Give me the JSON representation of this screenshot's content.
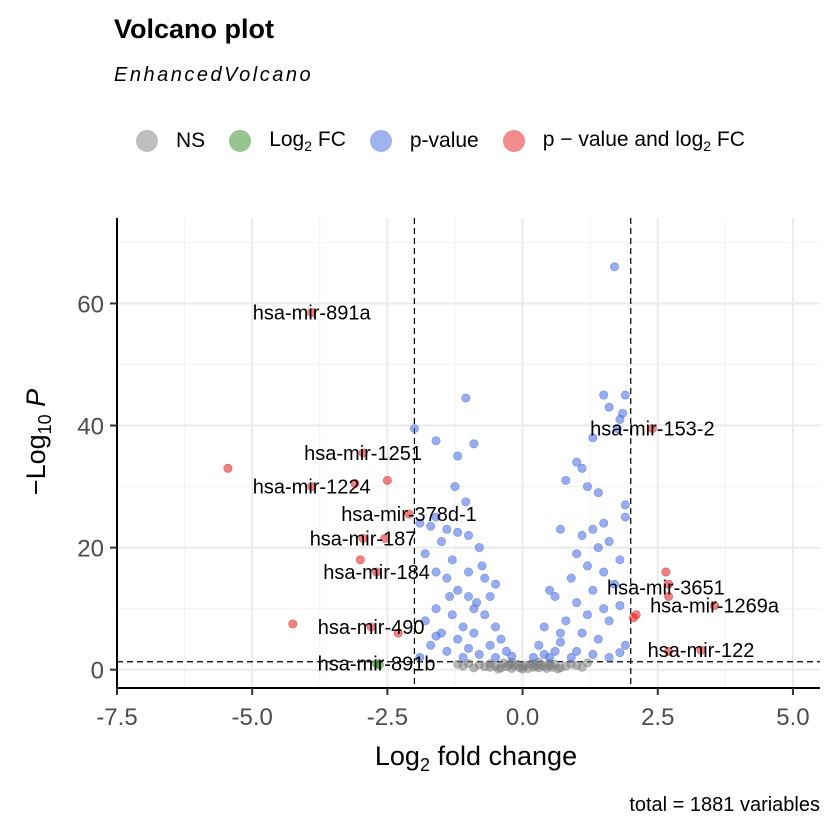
{
  "title": "Volcano plot",
  "subtitle": "EnhancedVolcano",
  "caption": "total = 1881 variables",
  "legend": [
    {
      "label": "NS",
      "sub": "",
      "rest": "",
      "color": "#808080"
    },
    {
      "label": "Log",
      "sub": "2",
      "rest": " FC",
      "color": "#2E8B22"
    },
    {
      "label": "p-value",
      "sub": "",
      "rest": "",
      "color": "#4169E1"
    },
    {
      "label": "p − value  and  log",
      "sub": "2",
      "rest": " FC",
      "color": "#E41A1C"
    }
  ],
  "chart_data": {
    "type": "scatter",
    "title": "Volcano plot",
    "subtitle": "EnhancedVolcano",
    "xlabel": "Log2 fold change",
    "ylabel": "−Log10 P",
    "xlim": [
      -7.5,
      5.5
    ],
    "ylim": [
      -3,
      74
    ],
    "xticks": [
      -7.5,
      -5.0,
      -2.5,
      0.0,
      2.5,
      5.0
    ],
    "xtick_labels": [
      "-7.5",
      "-5.0",
      "-2.5",
      "0.0",
      "2.5",
      "5.0"
    ],
    "yticks": [
      0,
      20,
      40,
      60
    ],
    "ytick_labels": [
      "0",
      "20",
      "40",
      "60"
    ],
    "thresholds": {
      "fc": [
        -2,
        2
      ],
      "p": 1.3
    },
    "grid": true,
    "legend_position": "top",
    "series": [
      {
        "name": "NS",
        "color": "#808080",
        "points": [
          [
            -0.6,
            0.4
          ],
          [
            -0.5,
            0.6
          ],
          [
            -0.4,
            0.3
          ],
          [
            -0.3,
            0.5
          ],
          [
            -0.25,
            0.8
          ],
          [
            -0.2,
            0.2
          ],
          [
            -0.15,
            0.6
          ],
          [
            -0.1,
            0.9
          ],
          [
            -0.05,
            0.3
          ],
          [
            0.0,
            0.5
          ],
          [
            0.05,
            0.7
          ],
          [
            0.1,
            0.2
          ],
          [
            0.15,
            0.9
          ],
          [
            0.2,
            0.4
          ],
          [
            0.25,
            0.6
          ],
          [
            0.3,
            0.3
          ],
          [
            0.35,
            0.8
          ],
          [
            0.4,
            0.5
          ],
          [
            0.45,
            0.2
          ],
          [
            0.5,
            0.7
          ],
          [
            0.55,
            0.4
          ],
          [
            0.6,
            0.9
          ],
          [
            0.7,
            0.3
          ],
          [
            0.8,
            0.6
          ],
          [
            -0.7,
            0.5
          ],
          [
            -0.8,
            0.8
          ],
          [
            -1.0,
            1.0
          ],
          [
            -1.1,
            0.6
          ],
          [
            -1.2,
            0.9
          ],
          [
            0.9,
            0.9
          ],
          [
            1.0,
            0.7
          ],
          [
            1.2,
            1.1
          ],
          [
            -0.35,
            1.1
          ],
          [
            0.3,
            1.2
          ],
          [
            -0.45,
            0.1
          ],
          [
            0.65,
            0.15
          ],
          [
            -0.9,
            0.3
          ],
          [
            1.1,
            0.4
          ],
          [
            0.0,
            0.1
          ],
          [
            -0.2,
            1.2
          ],
          [
            0.2,
            1.0
          ],
          [
            0.5,
            1.1
          ],
          [
            -0.6,
            1.0
          ]
        ]
      },
      {
        "name": "Log2 FC",
        "color": "#2E8B22",
        "points": [
          [
            -2.7,
            1.0
          ],
          [
            -2.65,
            0.8
          ]
        ]
      },
      {
        "name": "p-value",
        "color": "#4169E1",
        "points": [
          [
            1.7,
            66
          ],
          [
            1.5,
            45
          ],
          [
            1.9,
            45
          ],
          [
            1.6,
            43
          ],
          [
            1.85,
            42
          ],
          [
            1.8,
            41
          ],
          [
            1.75,
            39.5
          ],
          [
            1.3,
            38
          ],
          [
            1.1,
            33
          ],
          [
            1.0,
            34
          ],
          [
            0.8,
            31
          ],
          [
            1.2,
            30
          ],
          [
            1.4,
            29
          ],
          [
            1.9,
            27
          ],
          [
            1.9,
            25
          ],
          [
            1.5,
            24
          ],
          [
            1.3,
            23
          ],
          [
            0.7,
            23
          ],
          [
            1.1,
            22
          ],
          [
            1.6,
            21
          ],
          [
            1.4,
            20
          ],
          [
            1.0,
            19
          ],
          [
            1.8,
            18
          ],
          [
            1.2,
            17
          ],
          [
            1.5,
            16
          ],
          [
            0.9,
            15
          ],
          [
            1.7,
            14
          ],
          [
            1.3,
            13
          ],
          [
            0.5,
            13
          ],
          [
            0.6,
            12
          ],
          [
            1.0,
            11
          ],
          [
            1.8,
            10.5
          ],
          [
            1.5,
            10
          ],
          [
            1.2,
            9
          ],
          [
            0.8,
            8
          ],
          [
            1.6,
            8
          ],
          [
            0.4,
            7
          ],
          [
            1.1,
            6
          ],
          [
            0.7,
            6
          ],
          [
            1.4,
            5
          ],
          [
            0.3,
            4
          ],
          [
            1.9,
            4
          ],
          [
            0.6,
            3
          ],
          [
            1.0,
            3
          ],
          [
            1.3,
            2.5
          ],
          [
            0.5,
            2
          ],
          [
            0.9,
            2
          ],
          [
            1.6,
            2
          ],
          [
            1.8,
            2.8
          ],
          [
            0.4,
            2.5
          ],
          [
            0.2,
            2
          ],
          [
            0.7,
            4.5
          ],
          [
            -2.0,
            39.5
          ],
          [
            -1.05,
            44.5
          ],
          [
            -1.6,
            37.5
          ],
          [
            -0.9,
            37
          ],
          [
            -1.2,
            35
          ],
          [
            -1.25,
            30
          ],
          [
            -1.05,
            27.5
          ],
          [
            -1.6,
            25
          ],
          [
            -1.9,
            24
          ],
          [
            -1.7,
            23.5
          ],
          [
            -1.4,
            23
          ],
          [
            -1.2,
            22.5
          ],
          [
            -1.0,
            22
          ],
          [
            -1.5,
            21
          ],
          [
            -0.8,
            20
          ],
          [
            -1.8,
            19
          ],
          [
            -1.3,
            18
          ],
          [
            -1.6,
            16
          ],
          [
            -1.0,
            16
          ],
          [
            -0.7,
            15
          ],
          [
            -1.4,
            15
          ],
          [
            -1.2,
            13
          ],
          [
            -0.5,
            14
          ],
          [
            -1.0,
            12
          ],
          [
            -0.6,
            12
          ],
          [
            -1.6,
            10
          ],
          [
            -0.9,
            10
          ],
          [
            -1.3,
            9
          ],
          [
            -0.7,
            9
          ],
          [
            -1.8,
            8
          ],
          [
            -1.1,
            7
          ],
          [
            -0.5,
            7
          ],
          [
            -1.5,
            6
          ],
          [
            -0.9,
            6
          ],
          [
            -0.4,
            5
          ],
          [
            -1.2,
            5
          ],
          [
            -1.7,
            4
          ],
          [
            -0.6,
            4
          ],
          [
            -1.0,
            3.5
          ],
          [
            -0.3,
            3
          ],
          [
            -1.4,
            3
          ],
          [
            -0.8,
            2.5
          ],
          [
            -1.9,
            2
          ],
          [
            -0.5,
            2
          ],
          [
            -1.1,
            2
          ],
          [
            -0.2,
            2.2
          ],
          [
            -1.6,
            5.5
          ],
          [
            -0.85,
            11
          ],
          [
            -1.35,
            12
          ],
          [
            -0.75,
            17
          ]
        ]
      },
      {
        "name": "p-value and log2 FC",
        "color": "#E41A1C",
        "points": [
          [
            -3.9,
            58.5
          ],
          [
            -5.45,
            33
          ],
          [
            -2.95,
            35.5
          ],
          [
            -2.5,
            31
          ],
          [
            -3.9,
            30
          ],
          [
            -3.1,
            30.5
          ],
          [
            -2.1,
            25.5
          ],
          [
            -2.95,
            21.5
          ],
          [
            -2.55,
            21.5
          ],
          [
            -3.0,
            18
          ],
          [
            -2.7,
            16
          ],
          [
            -4.25,
            7.5
          ],
          [
            -2.8,
            7
          ],
          [
            -2.3,
            6
          ],
          [
            2.4,
            39.5
          ],
          [
            2.65,
            16
          ],
          [
            2.7,
            14
          ],
          [
            2.7,
            12
          ],
          [
            3.55,
            10.5
          ],
          [
            2.1,
            9
          ],
          [
            2.05,
            8.5
          ],
          [
            2.7,
            3
          ],
          [
            3.3,
            3.2
          ]
        ]
      }
    ],
    "labels": [
      {
        "text": "hsa-mir-891a",
        "x": -3.9,
        "y": 58.5
      },
      {
        "text": "hsa-mir-153-2",
        "x": 2.4,
        "y": 39.5
      },
      {
        "text": "hsa-mir-1251",
        "x": -2.95,
        "y": 35.5
      },
      {
        "text": "hsa-mir-1224",
        "x": -3.9,
        "y": 30
      },
      {
        "text": "hsa-mir-378d-1",
        "x": -2.1,
        "y": 25.5
      },
      {
        "text": "hsa-mir-187",
        "x": -2.95,
        "y": 21.5
      },
      {
        "text": "hsa-mir-184",
        "x": -2.7,
        "y": 16
      },
      {
        "text": "hsa-mir-3651",
        "x": 2.65,
        "y": 13.5
      },
      {
        "text": "hsa-mir-1269a",
        "x": 3.55,
        "y": 10.5
      },
      {
        "text": "hsa-mir-490",
        "x": -2.8,
        "y": 7
      },
      {
        "text": "hsa-mir-122",
        "x": 3.3,
        "y": 3.2
      },
      {
        "text": "hsa-mir-891b",
        "x": -2.7,
        "y": 1.0
      }
    ]
  }
}
